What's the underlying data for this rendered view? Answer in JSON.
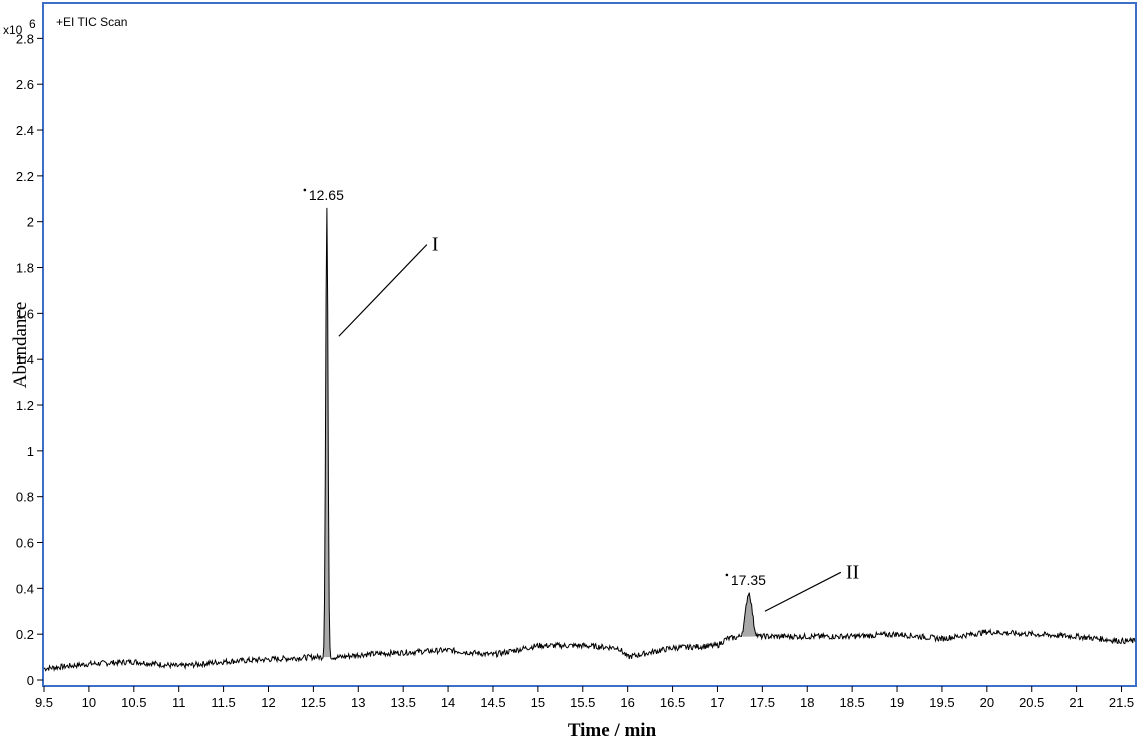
{
  "chart_data": {
    "type": "line",
    "subtitle": "+EI TIC Scan",
    "y_multiplier": "x10",
    "y_multiplier_exp": "6",
    "xlabel": "Time / min",
    "ylabel": "Abundance",
    "xlim": [
      9.5,
      21.65
    ],
    "ylim": [
      0,
      2.95
    ],
    "grid": false,
    "x_ticks": [
      9.5,
      10,
      10.5,
      11,
      11.5,
      12,
      12.5,
      13,
      13.5,
      14,
      14.5,
      15,
      15.5,
      16,
      16.5,
      17,
      17.5,
      18,
      18.5,
      19,
      19.5,
      20,
      20.5,
      21,
      21.5
    ],
    "y_ticks": [
      0,
      0.2,
      0.4,
      0.6,
      0.8,
      1,
      1.2,
      1.4,
      1.6,
      1.8,
      2,
      2.2,
      2.4,
      2.6,
      2.8
    ],
    "baseline": {
      "x": [
        9.5,
        10.0,
        10.5,
        11.0,
        11.5,
        12.0,
        12.5,
        12.6,
        12.8,
        13.0,
        13.5,
        14.0,
        14.5,
        15.0,
        15.5,
        15.9,
        16.0,
        16.5,
        17.0,
        17.1,
        17.3,
        17.5,
        18.0,
        18.5,
        19.0,
        19.5,
        20.0,
        20.5,
        21.0,
        21.5,
        21.65
      ],
      "y": [
        0.05,
        0.07,
        0.08,
        0.06,
        0.08,
        0.09,
        0.1,
        0.1,
        0.1,
        0.11,
        0.12,
        0.13,
        0.11,
        0.15,
        0.15,
        0.14,
        0.1,
        0.14,
        0.15,
        0.18,
        0.19,
        0.19,
        0.19,
        0.19,
        0.2,
        0.18,
        0.21,
        0.2,
        0.19,
        0.17,
        0.17
      ]
    },
    "peaks": [
      {
        "rt": 12.65,
        "height": 2.06,
        "label": "12.65",
        "id": "I"
      },
      {
        "rt": 17.35,
        "height": 0.38,
        "label": "17.35",
        "id": "II"
      }
    ]
  }
}
